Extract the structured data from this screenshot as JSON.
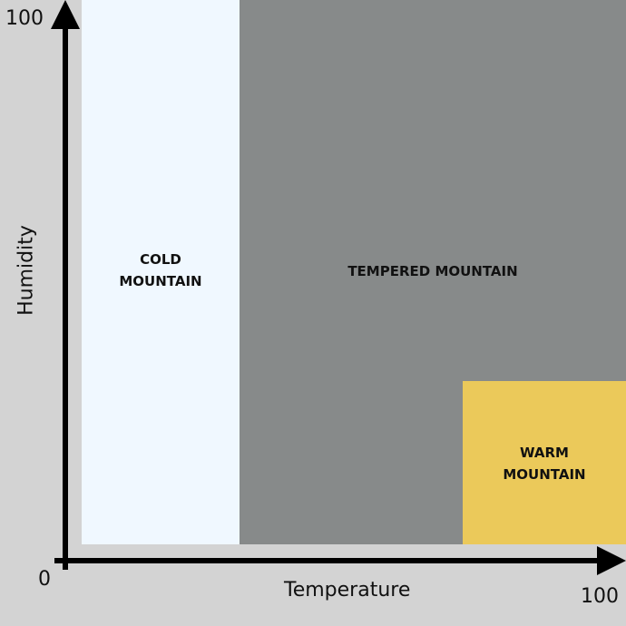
{
  "regions": {
    "cold": {
      "label": "COLD\nMOUNTAIN",
      "color": "#f0f8ff"
    },
    "tempered": {
      "label": "TEMPERED MOUNTAIN",
      "color": "#878a8a"
    },
    "warm": {
      "label": "WARM\nMOUNTAIN",
      "color": "#ebc95a"
    }
  },
  "axes": {
    "x_label": "Temperature",
    "y_label": "Humidity",
    "origin": "0",
    "x_max": "100",
    "y_max": "100",
    "color": "#000000"
  },
  "background": "#d3d3d3"
}
